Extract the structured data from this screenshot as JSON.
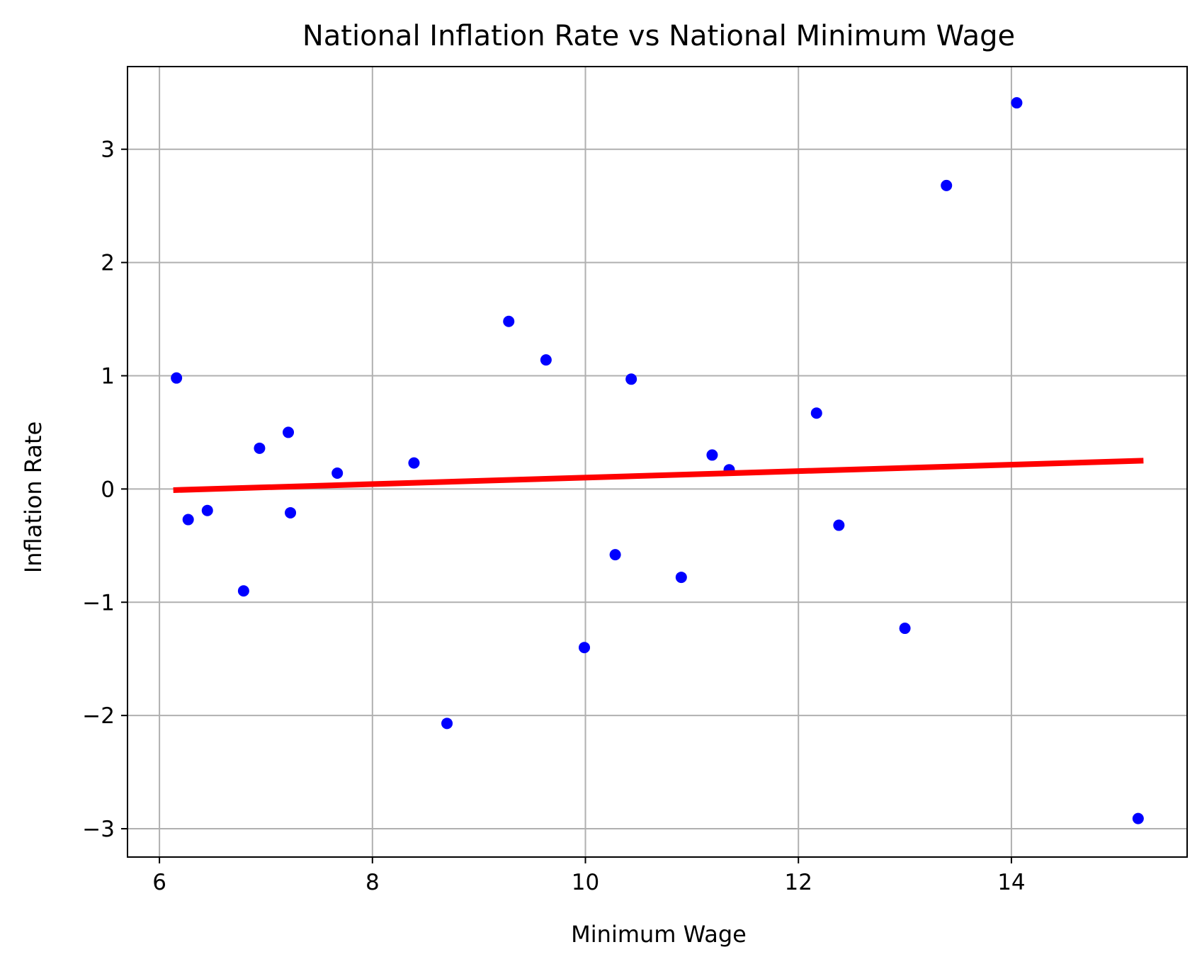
{
  "chart_data": {
    "type": "scatter",
    "title": "National Inflation Rate vs National Minimum Wage",
    "xlabel": "Minimum Wage",
    "ylabel": "Inflation Rate",
    "xlim": [
      5.7,
      15.65
    ],
    "ylim": [
      -3.25,
      3.73
    ],
    "xticks": [
      6,
      8,
      10,
      12,
      14
    ],
    "yticks": [
      -3,
      -2,
      -1,
      0,
      1,
      2,
      3
    ],
    "xtick_labels": [
      "6",
      "8",
      "10",
      "12",
      "14"
    ],
    "ytick_labels": [
      "−3",
      "−2",
      "−1",
      "0",
      "1",
      "2",
      "3"
    ],
    "grid": true,
    "point_color": "#0000ff",
    "line_color": "#ff0000",
    "points": [
      {
        "x": 6.16,
        "y": 0.98
      },
      {
        "x": 6.27,
        "y": -0.27
      },
      {
        "x": 6.45,
        "y": -0.19
      },
      {
        "x": 6.79,
        "y": -0.9
      },
      {
        "x": 6.94,
        "y": 0.36
      },
      {
        "x": 7.21,
        "y": 0.5
      },
      {
        "x": 7.23,
        "y": -0.21
      },
      {
        "x": 7.67,
        "y": 0.14
      },
      {
        "x": 8.39,
        "y": 0.23
      },
      {
        "x": 8.7,
        "y": -2.07
      },
      {
        "x": 9.28,
        "y": 1.48
      },
      {
        "x": 9.63,
        "y": 1.14
      },
      {
        "x": 9.99,
        "y": -1.4
      },
      {
        "x": 10.28,
        "y": -0.58
      },
      {
        "x": 10.43,
        "y": 0.97
      },
      {
        "x": 10.9,
        "y": -0.78
      },
      {
        "x": 11.19,
        "y": 0.3
      },
      {
        "x": 11.35,
        "y": 0.17
      },
      {
        "x": 12.17,
        "y": 0.67
      },
      {
        "x": 12.38,
        "y": -0.32
      },
      {
        "x": 13.0,
        "y": -1.23
      },
      {
        "x": 13.39,
        "y": 2.68
      },
      {
        "x": 14.05,
        "y": 3.41
      },
      {
        "x": 15.19,
        "y": -2.91
      }
    ],
    "trend_line": {
      "x": [
        6.13,
        15.24
      ],
      "y": [
        -0.01,
        0.25
      ]
    }
  }
}
